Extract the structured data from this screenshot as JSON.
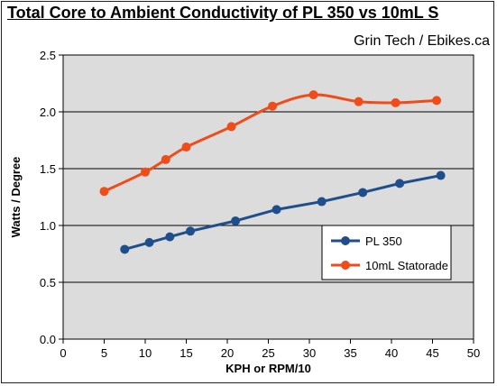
{
  "chart_data": {
    "type": "line",
    "title": "Total Core to Ambient Conductivity of PL 350 vs 10mL S",
    "subtitle": "Grin Tech / Ebikes.ca",
    "xlabel": "KPH or RPM/10",
    "ylabel": "Watts / Degree",
    "xlim": [
      0,
      50
    ],
    "ylim": [
      0,
      2.5
    ],
    "xticks": [
      0,
      5,
      10,
      15,
      20,
      25,
      30,
      35,
      40,
      45,
      50
    ],
    "yticks": [
      0.0,
      0.5,
      1.0,
      1.5,
      2.0,
      2.5
    ],
    "ytick_labels": [
      "0.0",
      "0.5",
      "1.0",
      "1.5",
      "2.0",
      "2.5"
    ],
    "grid": "horizontal",
    "legend_position": "lower-right",
    "series": [
      {
        "name": "PL 350",
        "color": "#1f4e8c",
        "smooth": false,
        "x": [
          7.5,
          10.5,
          13.0,
          15.5,
          21.0,
          26.0,
          31.5,
          36.5,
          41.0,
          46.0
        ],
        "y": [
          0.79,
          0.85,
          0.9,
          0.95,
          1.04,
          1.14,
          1.21,
          1.29,
          1.37,
          1.44
        ]
      },
      {
        "name": "10mL Statorade",
        "color": "#f04c1a",
        "smooth": true,
        "x": [
          5.0,
          10.0,
          12.5,
          15.0,
          20.5,
          25.5,
          30.5,
          36.0,
          40.5,
          45.5
        ],
        "y": [
          1.3,
          1.47,
          1.58,
          1.69,
          1.87,
          2.05,
          2.15,
          2.09,
          2.08,
          2.1
        ]
      }
    ]
  }
}
